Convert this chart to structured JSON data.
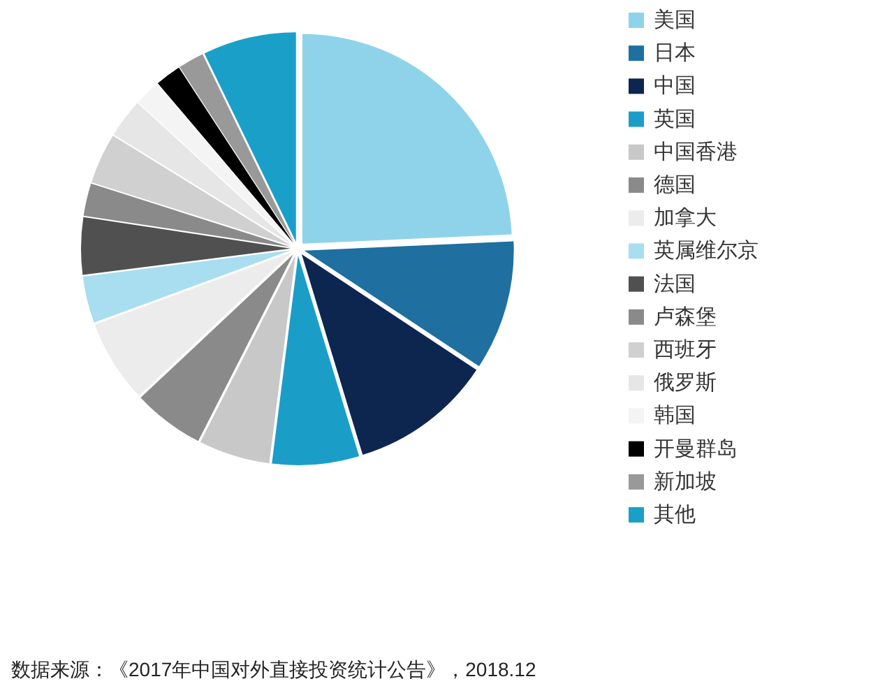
{
  "chart_data": {
    "type": "pie",
    "categories": [
      "美国",
      "日本",
      "中国",
      "英国",
      "中国香港",
      "德国",
      "加拿大",
      "英属维尔京",
      "法国",
      "卢森堡",
      "西班牙",
      "俄罗斯",
      "韩国",
      "开曼群岛",
      "新加坡",
      "其他"
    ],
    "values": [
      24.3,
      10,
      11,
      6.7,
      5.5,
      5.5,
      6.4,
      3.6,
      4.4,
      2.5,
      3.9,
      3,
      2,
      2,
      2,
      7.2
    ],
    "colors": [
      "#8fd3ea",
      "#1f6fa0",
      "#0d2650",
      "#1a9ec8",
      "#c8c8c8",
      "#8a8a8a",
      "#ececec",
      "#a8def0",
      "#505050",
      "#8a8a8a",
      "#d0d0d0",
      "#e6e6e6",
      "#f4f4f4",
      "#000000",
      "#999999",
      "#1aa0c8"
    ],
    "legend": "right",
    "annotations": [
      "数据来源：《2017年中国对外直接投资统计公告》，2018.12"
    ]
  }
}
